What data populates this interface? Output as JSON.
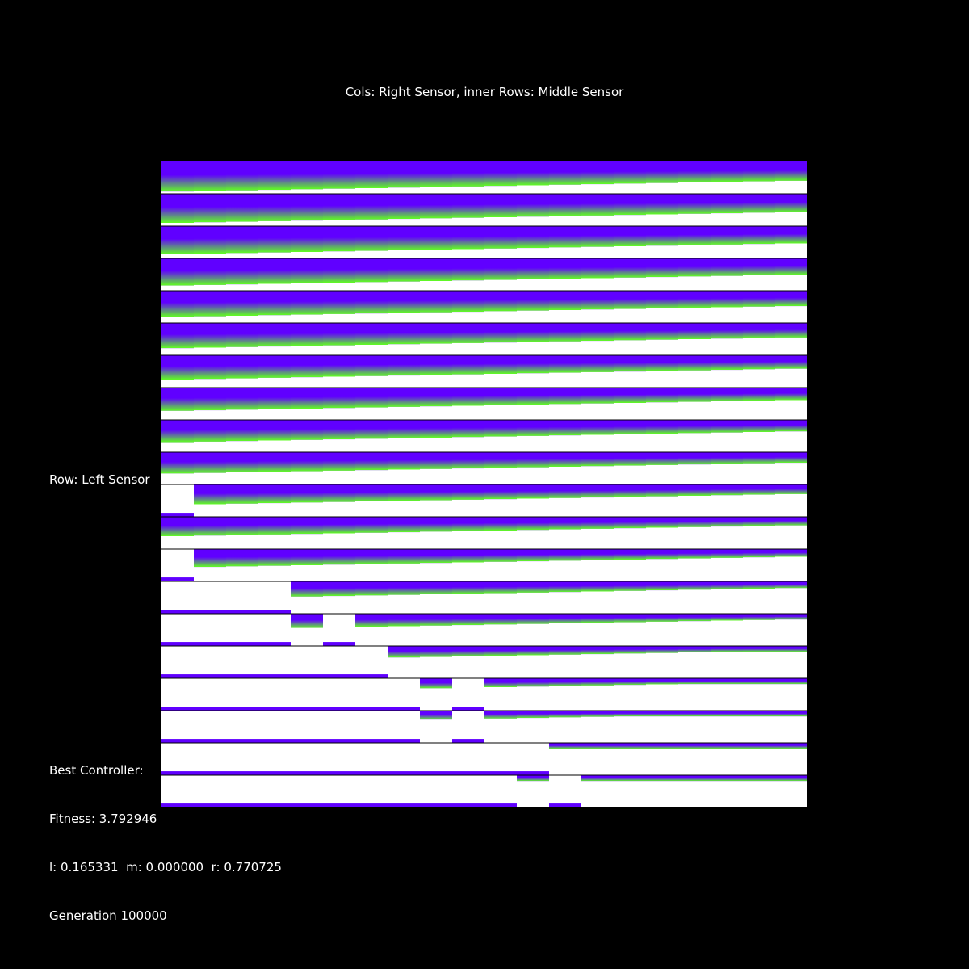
{
  "title": "Cols: Right Sensor, inner Rows: Middle Sensor",
  "row_axis_label": "Row: Left Sensor",
  "best_controller_label": "Best Controller:",
  "fitness_text": "Fitness: 3.792946",
  "weights_text": "l: 0.165331  m: 0.000000  r: 0.770725",
  "generation_text": "Generation 100000",
  "colors": {
    "background": "#000000",
    "low": "#6000ff",
    "high": "#60ff20",
    "saturated": "#ffffff",
    "separator": "#000000"
  },
  "grid": {
    "outer_rows": 20,
    "outer_cols": 20,
    "white_threshold_fraction_by_row": [
      0.93,
      0.9,
      0.87,
      0.84,
      0.81,
      0.78,
      0.75,
      0.72,
      0.69,
      0.66,
      0.63,
      0.6,
      0.57,
      0.54,
      0.51,
      0.48,
      0.45,
      0.42,
      0.39,
      0.36
    ],
    "white_blocks": [
      {
        "row": 10,
        "cols": [
          0
        ]
      },
      {
        "row": 12,
        "cols": [
          0
        ]
      },
      {
        "row": 13,
        "cols": [
          0,
          1,
          2,
          3
        ]
      },
      {
        "row": 14,
        "cols": [
          0,
          1,
          2,
          3,
          5
        ]
      },
      {
        "row": 15,
        "cols": [
          0,
          1,
          2,
          3,
          4,
          5,
          6
        ]
      },
      {
        "row": 16,
        "cols": [
          0,
          1,
          2,
          3,
          4,
          5,
          6,
          7,
          9
        ]
      },
      {
        "row": 17,
        "cols": [
          0,
          1,
          2,
          3,
          4,
          5,
          6,
          7,
          9
        ]
      },
      {
        "row": 18,
        "cols": [
          0,
          1,
          2,
          3,
          4,
          5,
          6,
          7,
          8,
          9,
          10,
          11
        ]
      },
      {
        "row": 19,
        "cols": [
          0,
          1,
          2,
          3,
          4,
          5,
          6,
          7,
          8,
          9,
          10,
          12
        ]
      }
    ]
  }
}
